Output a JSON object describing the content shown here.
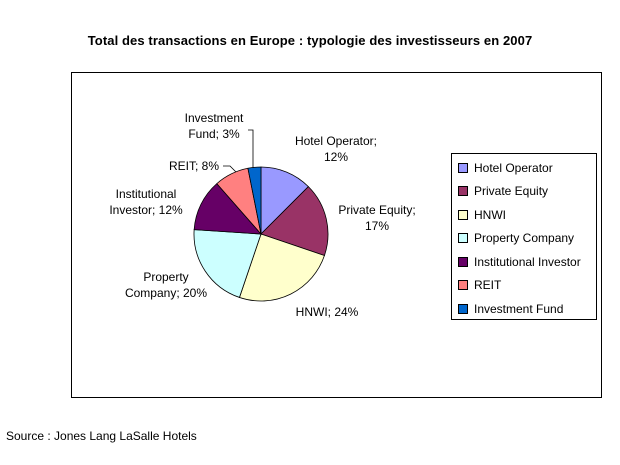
{
  "title": "Total des transactions en Europe : typologie des investisseurs en 2007",
  "source": "Source : Jones Lang LaSalle Hotels",
  "chart_data": {
    "type": "pie",
    "title": "Total des transactions en Europe : typologie des investisseurs en 2007",
    "slices": [
      {
        "name": "Hotel Operator",
        "value": 12,
        "color": "#9999ff",
        "label_lines": [
          "Hotel Operator;",
          "12%"
        ]
      },
      {
        "name": "Private Equity",
        "value": 17,
        "color": "#993366",
        "label_lines": [
          "Private Equity;",
          "17%"
        ]
      },
      {
        "name": "HNWI",
        "value": 24,
        "color": "#ffffcc",
        "label_lines": [
          "HNWI; 24%"
        ]
      },
      {
        "name": "Property Company",
        "value": 20,
        "color": "#ccffff",
        "label_lines": [
          "Property",
          "Company; 20%"
        ]
      },
      {
        "name": "Institutional Investor",
        "value": 12,
        "color": "#660066",
        "label_lines": [
          "Institutional",
          "Investor; 12%"
        ]
      },
      {
        "name": "REIT",
        "value": 8,
        "color": "#ff8080",
        "label_lines": [
          "REIT; 8%"
        ]
      },
      {
        "name": "Investment Fund",
        "value": 3,
        "color": "#0066cc",
        "label_lines": [
          "Investment",
          "Fund; 3%"
        ]
      }
    ],
    "legend_position": "right"
  }
}
